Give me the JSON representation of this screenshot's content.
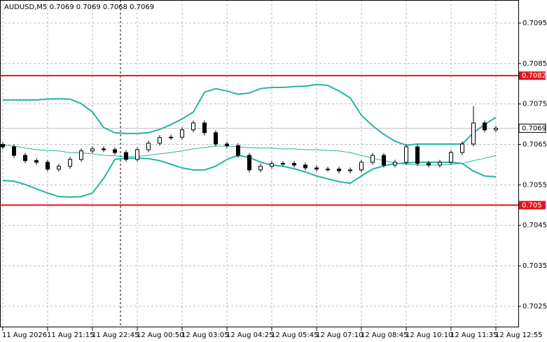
{
  "chart_data": {
    "type": "candlestick",
    "title": "AUDUSD,M5  0.7069 0.7069 0.7068 0.7069",
    "open": [
      0.7065,
      0.70644,
      0.70623,
      0.7061,
      0.70606,
      0.70589,
      0.70596,
      0.70613,
      0.70634,
      0.70639,
      0.70637,
      0.7063,
      0.70613,
      0.70637,
      0.70653,
      0.70667,
      0.70668,
      0.70686,
      0.70703,
      0.70679,
      0.70651,
      0.70647,
      0.70623,
      0.70587,
      0.70596,
      0.70603,
      0.70603,
      0.70599,
      0.70592,
      0.70589,
      0.70589,
      0.70585,
      0.70587,
      0.70606,
      0.70623,
      0.70599,
      0.70606,
      0.70644,
      0.70603,
      0.70599,
      0.70606,
      0.7063,
      0.70651,
      0.70703,
      0.70686
    ],
    "high": [
      0.70656,
      0.7065,
      0.70629,
      0.70616,
      0.70612,
      0.70602,
      0.70619,
      0.7064,
      0.70645,
      0.70645,
      0.70643,
      0.70636,
      0.70643,
      0.70659,
      0.70673,
      0.70674,
      0.70692,
      0.70709,
      0.70709,
      0.70685,
      0.70657,
      0.70653,
      0.70629,
      0.70602,
      0.70609,
      0.70609,
      0.70609,
      0.70605,
      0.70598,
      0.70595,
      0.70595,
      0.70593,
      0.70612,
      0.70629,
      0.70629,
      0.70612,
      0.7065,
      0.7065,
      0.70609,
      0.70612,
      0.70636,
      0.70657,
      0.70745,
      0.70709,
      0.70696
    ],
    "low": [
      0.70638,
      0.70617,
      0.70604,
      0.706,
      0.70583,
      0.70583,
      0.7059,
      0.70607,
      0.70628,
      0.70631,
      0.70624,
      0.70607,
      0.70607,
      0.70631,
      0.70647,
      0.70661,
      0.70662,
      0.7068,
      0.70673,
      0.70645,
      0.70641,
      0.70617,
      0.70581,
      0.70581,
      0.7059,
      0.70597,
      0.70593,
      0.70586,
      0.70583,
      0.70583,
      0.70579,
      0.70579,
      0.70581,
      0.706,
      0.70593,
      0.70593,
      0.706,
      0.70597,
      0.70593,
      0.70593,
      0.706,
      0.70624,
      0.70645,
      0.7068,
      0.7068
    ],
    "close": [
      0.70644,
      0.70623,
      0.7061,
      0.70606,
      0.70589,
      0.70596,
      0.70613,
      0.70634,
      0.70639,
      0.70637,
      0.7063,
      0.70613,
      0.70637,
      0.70653,
      0.70667,
      0.70668,
      0.70686,
      0.70703,
      0.70679,
      0.70651,
      0.70647,
      0.70623,
      0.70587,
      0.70596,
      0.70603,
      0.70603,
      0.70599,
      0.70592,
      0.70589,
      0.70589,
      0.70585,
      0.70587,
      0.70606,
      0.70623,
      0.70599,
      0.70606,
      0.70644,
      0.70603,
      0.70599,
      0.70606,
      0.7063,
      0.70651,
      0.70703,
      0.70686,
      0.7069
    ],
    "bands": [
      {
        "color": "#26b3a4",
        "values": [
          0.7076,
          0.7076,
          0.7076,
          0.7076,
          0.70762,
          0.70763,
          0.70762,
          0.70751,
          0.7073,
          0.70692,
          0.70679,
          0.70677,
          0.70677,
          0.70679,
          0.70687,
          0.70699,
          0.70713,
          0.7073,
          0.70779,
          0.70788,
          0.70782,
          0.70774,
          0.70777,
          0.70788,
          0.70791,
          0.70791,
          0.70793,
          0.70794,
          0.70798,
          0.70796,
          0.70782,
          0.70765,
          0.70722,
          0.70696,
          0.70675,
          0.70658,
          0.70648,
          0.70651,
          0.70651,
          0.70651,
          0.70651,
          0.70651,
          0.70679,
          0.70699,
          0.70717
        ]
      },
      {
        "color": "#26b3a4",
        "values": [
          0.70649,
          0.70646,
          0.70641,
          0.70637,
          0.70635,
          0.70634,
          0.7063,
          0.70629,
          0.70627,
          0.70623,
          0.70622,
          0.7062,
          0.7062,
          0.70623,
          0.70627,
          0.7063,
          0.70634,
          0.70639,
          0.70642,
          0.70646,
          0.70646,
          0.70644,
          0.70642,
          0.70641,
          0.70641,
          0.70639,
          0.70639,
          0.70637,
          0.70637,
          0.70635,
          0.70634,
          0.7063,
          0.70623,
          0.70616,
          0.7061,
          0.70604,
          0.70601,
          0.70599,
          0.70599,
          0.70599,
          0.70601,
          0.70603,
          0.7061,
          0.70616,
          0.70623
        ]
      },
      {
        "color": "#26b3a4",
        "values": [
          0.70561,
          0.70559,
          0.70551,
          0.7054,
          0.7053,
          0.70521,
          0.7052,
          0.70521,
          0.7053,
          0.70566,
          0.70613,
          0.70616,
          0.70616,
          0.70615,
          0.7061,
          0.70601,
          0.70592,
          0.70587,
          0.70587,
          0.70596,
          0.70613,
          0.70623,
          0.70618,
          0.70606,
          0.70599,
          0.70596,
          0.7059,
          0.70582,
          0.70572,
          0.70565,
          0.70558,
          0.70554,
          0.70572,
          0.70589,
          0.70597,
          0.70603,
          0.70604,
          0.70606,
          0.70606,
          0.70606,
          0.70606,
          0.70603,
          0.70584,
          0.70572,
          0.7057
        ]
      }
    ],
    "levels": [
      {
        "value": 0.7082,
        "color": "#e8141a"
      },
      {
        "value": 0.705,
        "color": "#e8141a"
      }
    ],
    "last_price": 0.7069,
    "xlim": [
      -0.25,
      46
    ],
    "xticks": [
      {
        "value": 0,
        "label": "11 Aug 2026"
      },
      {
        "value": 4,
        "label": "11 Aug 21:15"
      },
      {
        "value": 8,
        "label": "11 Aug 22:45"
      },
      {
        "value": 12,
        "label": "12 Aug 00:50"
      },
      {
        "value": 16,
        "label": "12 Aug 03:05"
      },
      {
        "value": 20,
        "label": "12 Aug 04:25"
      },
      {
        "value": 24,
        "label": "12 Aug 05:45"
      },
      {
        "value": 28,
        "label": "12 Aug 07:10"
      },
      {
        "value": 32,
        "label": "12 Aug 08:45"
      },
      {
        "value": 36,
        "label": "12 Aug 10:10"
      },
      {
        "value": 40,
        "label": "12 Aug 11:35"
      },
      {
        "value": 44,
        "label": "12 Aug 12:55"
      }
    ],
    "ylim": [
      0.70198,
      0.71007
    ],
    "yticks": [
      0.7095,
      0.7085,
      0.7075,
      0.7065,
      0.7055,
      0.7045,
      0.7035,
      0.7025
    ],
    "grid": true
  }
}
